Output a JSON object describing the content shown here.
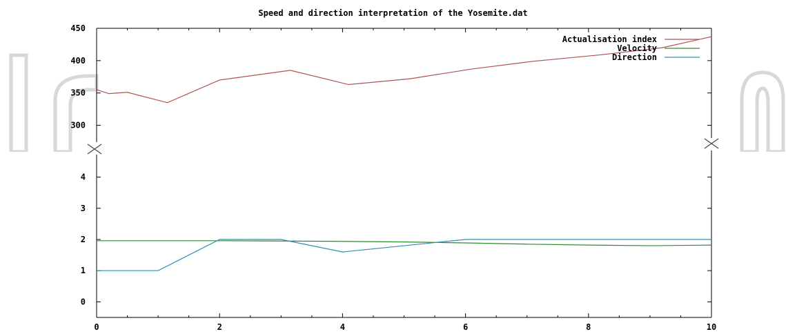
{
  "chart_data": {
    "type": "line",
    "title": "Speed and direction interpretation of the Yosemite.dat",
    "xlabel": "",
    "ylabel": "",
    "xlim": [
      0,
      10
    ],
    "x_ticks": [
      "0",
      "2",
      "4",
      "6",
      "8",
      "10"
    ],
    "top_panel": {
      "ylim": [
        275,
        450
      ],
      "y_ticks": [
        "300",
        "350",
        "400",
        "450"
      ],
      "series": [
        {
          "name": "Actualisation index",
          "color": "#b05050",
          "x": [
            0,
            0.2,
            0.5,
            1.15,
            2.0,
            3.15,
            4.1,
            5.1,
            6.1,
            7.1,
            8.2,
            9.2,
            10.0
          ],
          "values": [
            355,
            349,
            351,
            335,
            370,
            385,
            363,
            372,
            387,
            399,
            409,
            420,
            437
          ]
        }
      ]
    },
    "bottom_panel": {
      "ylim": [
        -0.5,
        4.7
      ],
      "y_ticks": [
        "0",
        "1",
        "2",
        "3",
        "4"
      ],
      "series": [
        {
          "name": "Velocity",
          "color": "#2e8b2e",
          "x": [
            0,
            1,
            2,
            3,
            4,
            5,
            6,
            7,
            8,
            9,
            10
          ],
          "values": [
            1.96,
            1.96,
            1.96,
            1.95,
            1.94,
            1.92,
            1.89,
            1.85,
            1.82,
            1.8,
            1.82
          ]
        },
        {
          "name": "Direction",
          "color": "#2e8fb0",
          "x": [
            0,
            1,
            2,
            3,
            4,
            5,
            6,
            7,
            8,
            9,
            10
          ],
          "values": [
            1.0,
            1.0,
            2.0,
            2.0,
            1.6,
            1.8,
            2.0,
            2.0,
            2.0,
            2.0,
            2.0
          ]
        }
      ]
    },
    "legend": {
      "placement": "top-right",
      "entries": [
        "Actualisation index",
        "Velocity",
        "Direction"
      ]
    },
    "grid": false,
    "broken_axis": true
  },
  "colors": {
    "axis": "#000000",
    "watermark": "#cccccc",
    "break_mark": "#444444"
  }
}
